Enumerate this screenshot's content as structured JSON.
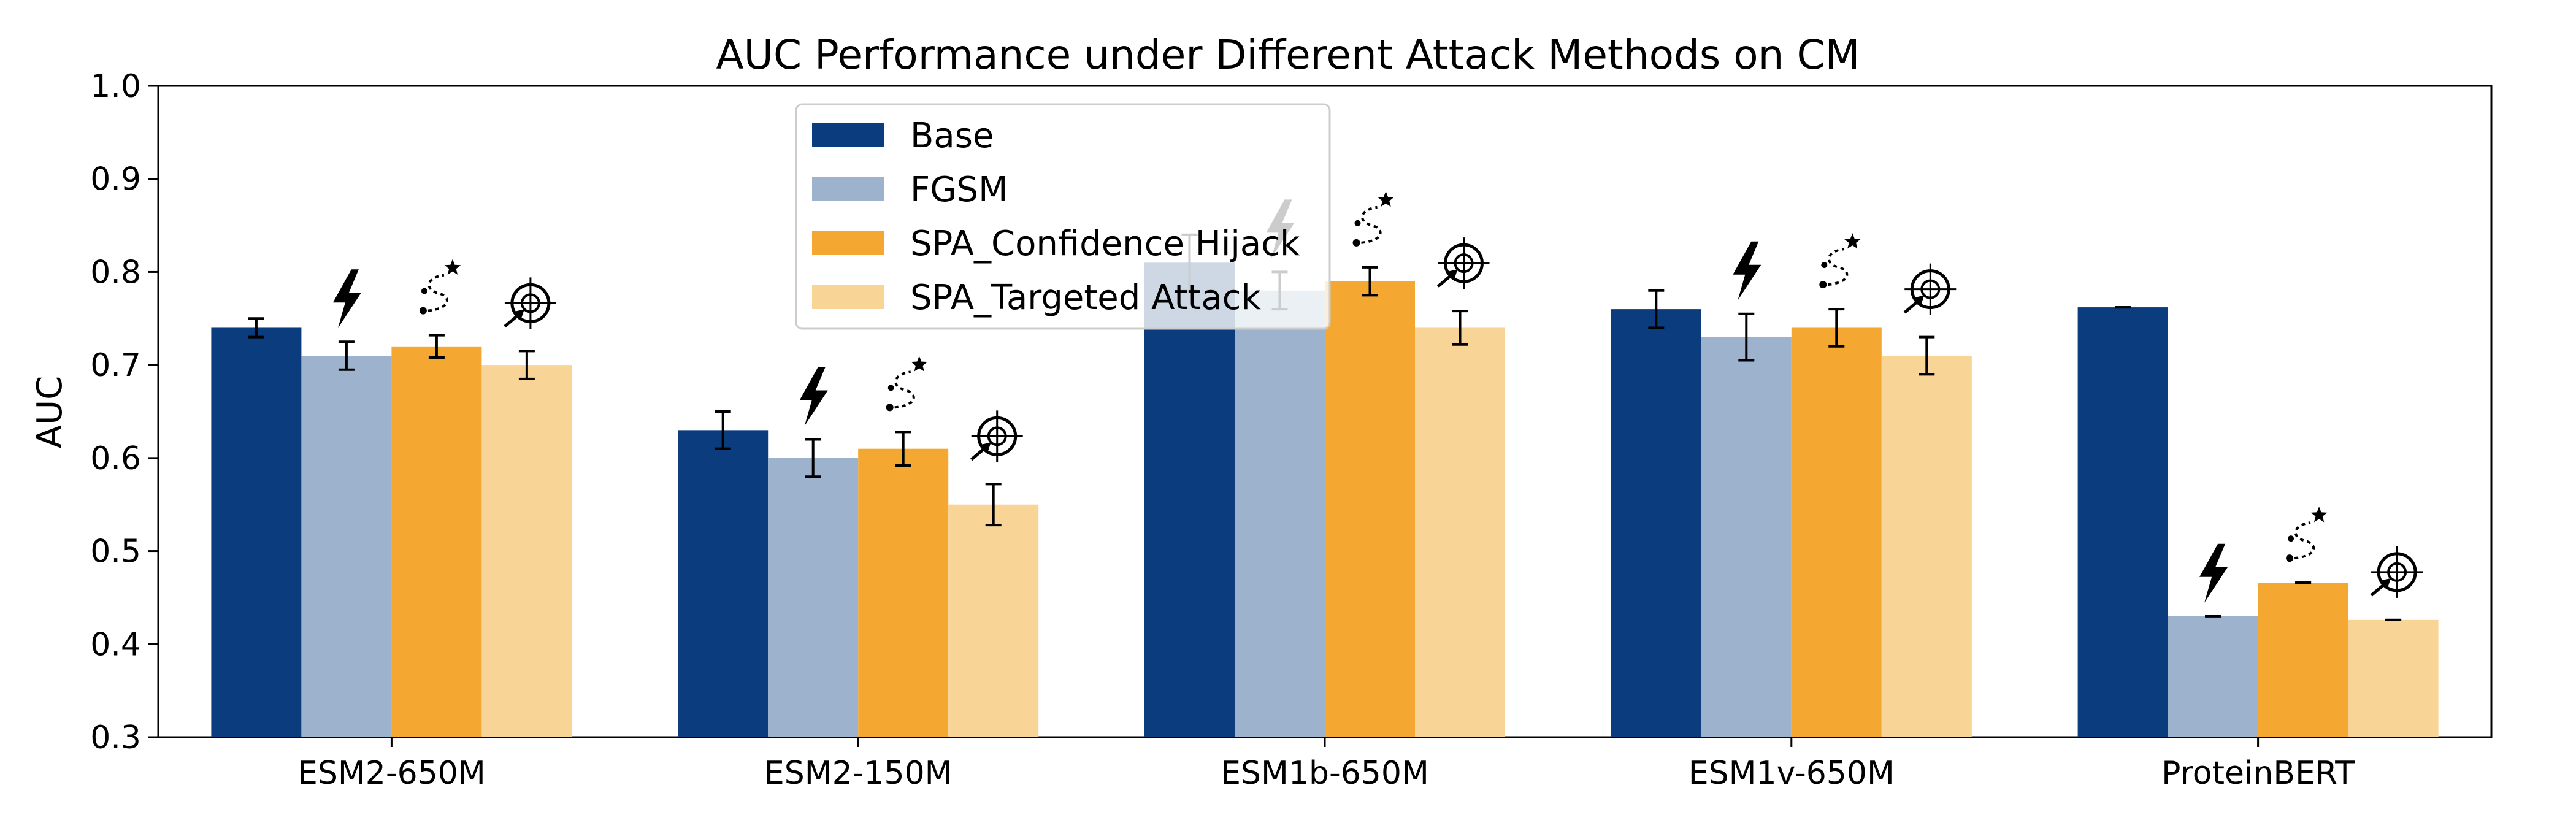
{
  "chart_data": {
    "type": "bar",
    "title": "AUC Performance under Different Attack Methods on CM",
    "xlabel": "",
    "ylabel": "AUC",
    "ylim": [
      0.3,
      1.0
    ],
    "yticks": [
      "0.3",
      "0.4",
      "0.5",
      "0.6",
      "0.7",
      "0.8",
      "0.9",
      "1.0"
    ],
    "categories": [
      "ESM2-650M",
      "ESM2-150M",
      "ESM1b-650M",
      "ESM1v-650M",
      "ProteinBERT"
    ],
    "series": [
      {
        "name": "Base",
        "color": "#0b3d7e",
        "values": [
          0.74,
          0.63,
          0.81,
          0.76,
          0.762
        ],
        "errors": [
          0.01,
          0.02,
          0.03,
          0.02,
          0.0
        ]
      },
      {
        "name": "FGSM",
        "color": "#9db3cd",
        "icon": "lightning-icon",
        "values": [
          0.71,
          0.6,
          0.78,
          0.73,
          0.43
        ],
        "errors": [
          0.015,
          0.02,
          0.02,
          0.025,
          0.0
        ]
      },
      {
        "name": "SPA_Confidence Hijack",
        "color": "#f4a832",
        "icon": "path-star-icon",
        "values": [
          0.72,
          0.61,
          0.79,
          0.74,
          0.466
        ],
        "errors": [
          0.012,
          0.018,
          0.015,
          0.02,
          0.0
        ]
      },
      {
        "name": "SPA_Targeted Attack",
        "color": "#f8d497",
        "icon": "target-icon",
        "values": [
          0.7,
          0.55,
          0.74,
          0.71,
          0.426
        ],
        "errors": [
          0.015,
          0.022,
          0.018,
          0.02,
          0.0
        ]
      }
    ],
    "legend_position": "upper-center"
  }
}
